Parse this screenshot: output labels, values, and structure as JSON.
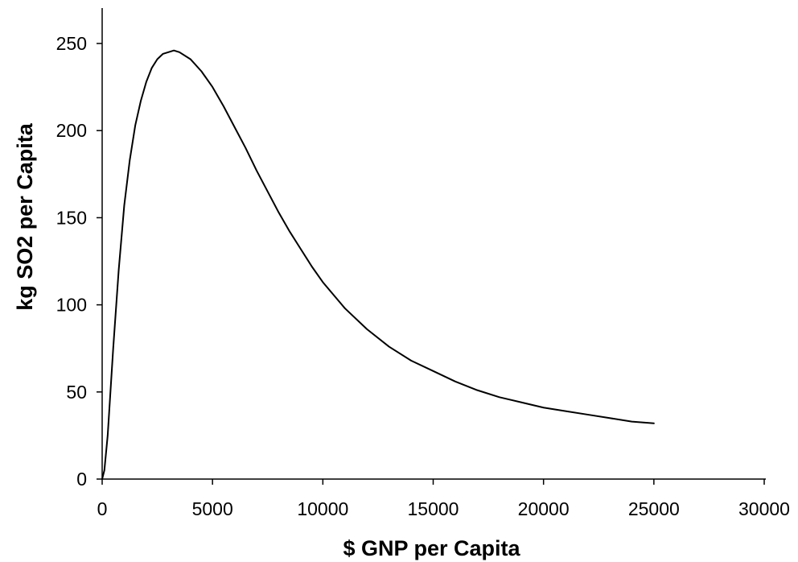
{
  "chart_data": {
    "type": "line",
    "title": "",
    "xlabel": "$ GNP per Capita",
    "ylabel": "kg SO2 per Capita",
    "xlim": [
      0,
      30000
    ],
    "ylim": [
      0,
      250
    ],
    "xticks": [
      0,
      5000,
      10000,
      15000,
      20000,
      25000,
      30000
    ],
    "yticks": [
      0,
      50,
      100,
      150,
      200,
      250
    ],
    "xtick_labels": [
      "0",
      "5000",
      "10000",
      "15000",
      "20000",
      "25000",
      "30000"
    ],
    "ytick_labels": [
      "0",
      "50",
      "100",
      "150",
      "200",
      "250"
    ],
    "grid": false,
    "legend": "none",
    "colors": {
      "line": "#000000",
      "axis": "#000000"
    },
    "series": [
      {
        "x": [
          0,
          100,
          250,
          500,
          750,
          1000,
          1250,
          1500,
          1750,
          2000,
          2250,
          2500,
          2750,
          3000,
          3250,
          3500,
          4000,
          4500,
          5000,
          5500,
          6000,
          6500,
          7000,
          7500,
          8000,
          8500,
          9000,
          9500,
          10000,
          11000,
          12000,
          13000,
          14000,
          15000,
          16000,
          17000,
          18000,
          19000,
          20000,
          21000,
          22000,
          23000,
          24000,
          25000
        ],
        "y": [
          0,
          5,
          25,
          75,
          120,
          157,
          183,
          203,
          217,
          228,
          236,
          241,
          244,
          245,
          246,
          245,
          241,
          234,
          225,
          214,
          202,
          190,
          177,
          165,
          153,
          142,
          132,
          122,
          113,
          98,
          86,
          76,
          68,
          62,
          56,
          51,
          47,
          44,
          41,
          39,
          37,
          35,
          33,
          32
        ]
      }
    ]
  }
}
